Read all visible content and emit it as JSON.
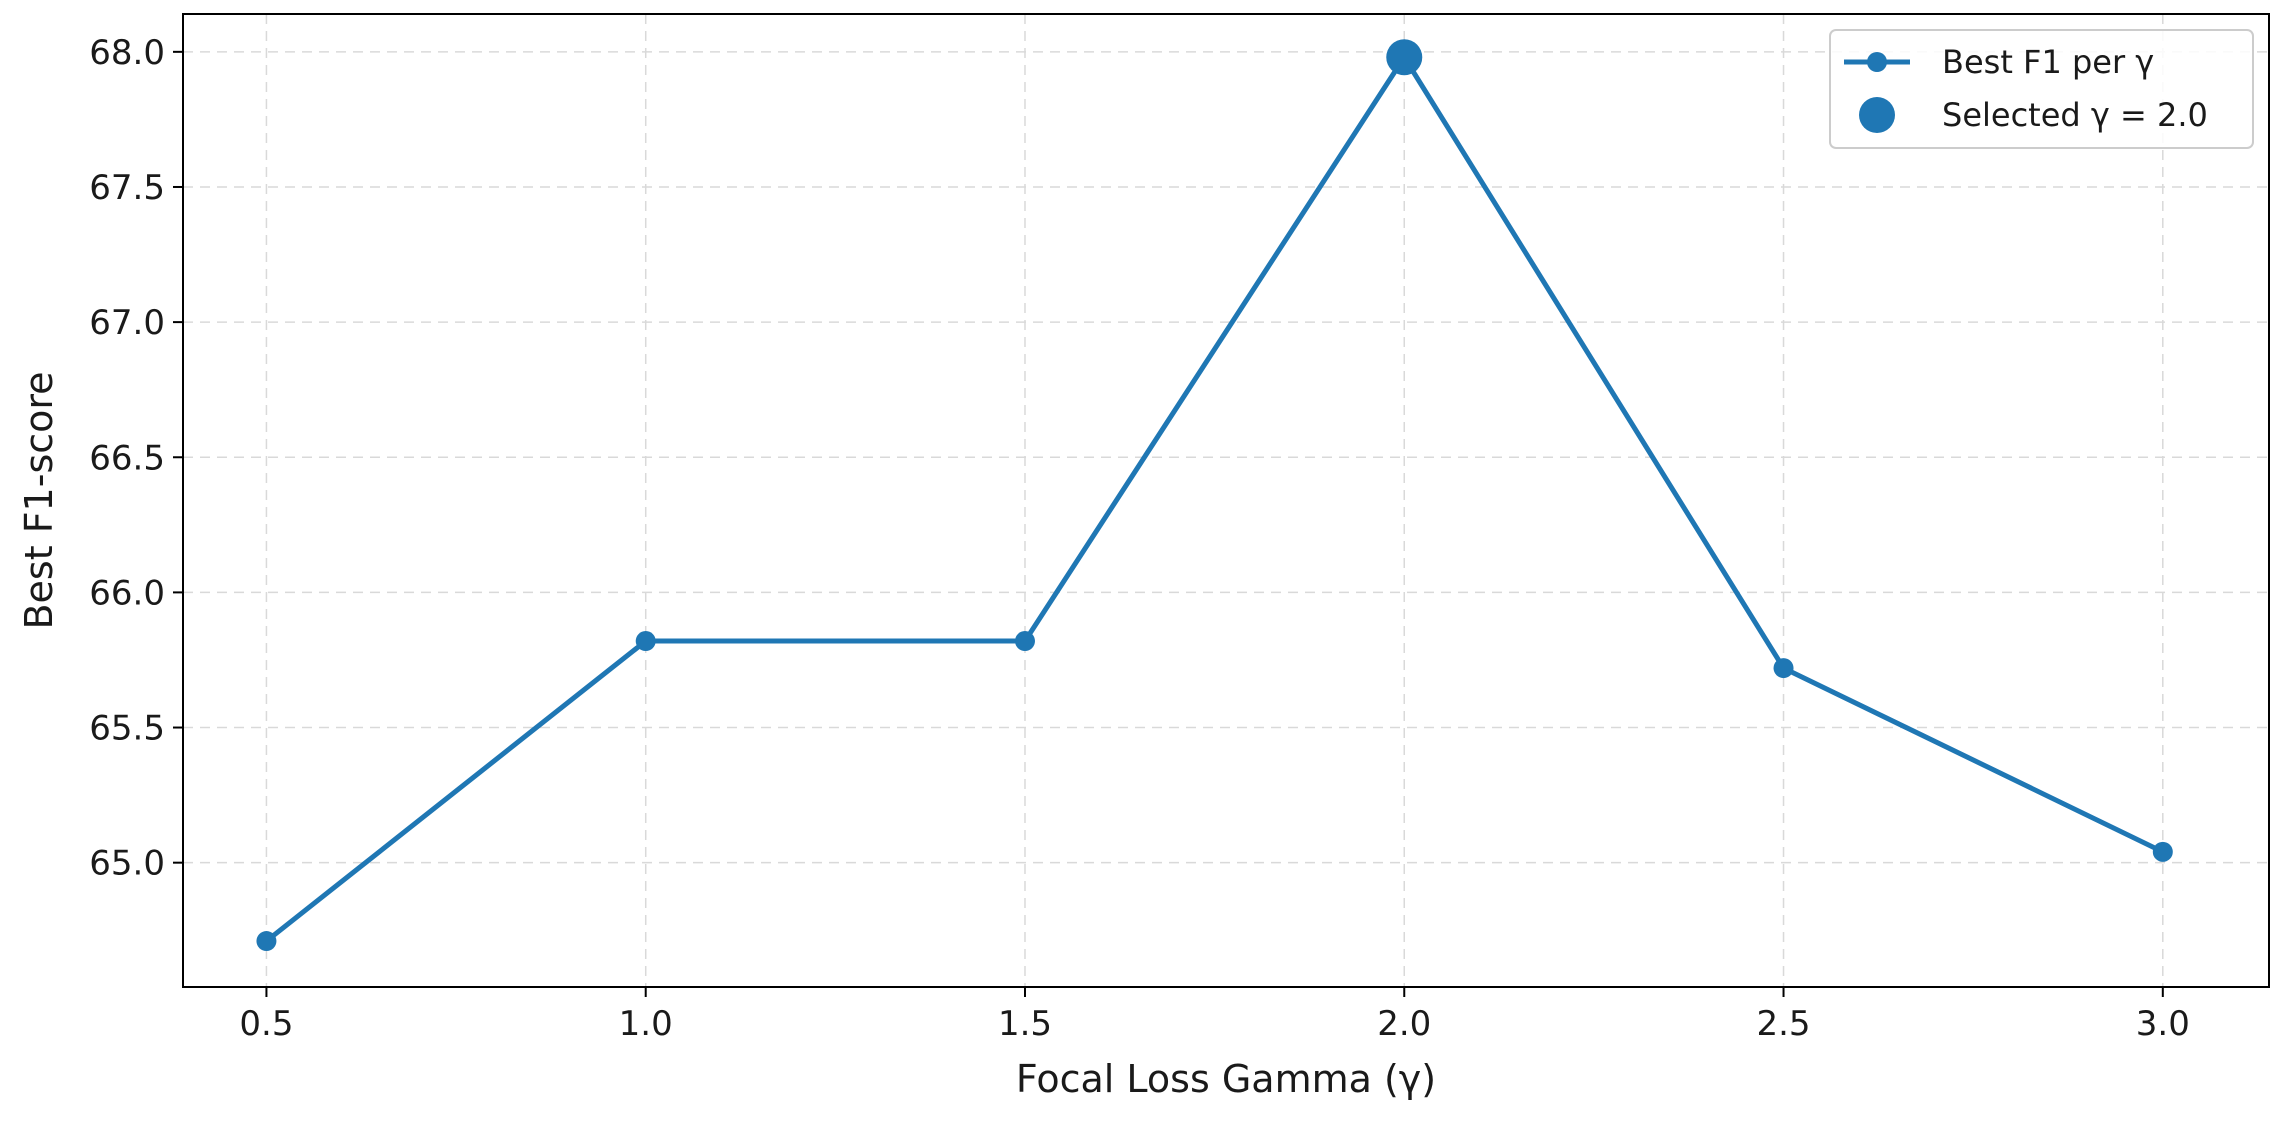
{
  "chart_data": {
    "type": "line",
    "xlabel": "Focal Loss Gamma (γ)",
    "ylabel": "Best F1-score",
    "xlim": [
      0.39,
      3.14
    ],
    "ylim": [
      64.54,
      68.14
    ],
    "x_ticks": [
      0.5,
      1.0,
      1.5,
      2.0,
      2.5,
      3.0
    ],
    "y_ticks": [
      65.0,
      65.5,
      66.0,
      66.5,
      67.0,
      67.5,
      68.0
    ],
    "grid": true,
    "legend_position": "top-right",
    "color": "#1f77b4",
    "series": [
      {
        "name": "Best F1 per γ",
        "x": [
          0.5,
          1.0,
          1.5,
          2.0,
          2.5,
          3.0
        ],
        "y": [
          64.71,
          65.82,
          65.82,
          67.98,
          65.72,
          65.04
        ]
      }
    ],
    "highlight": {
      "name": "Selected γ = 2.0",
      "x": 2.0,
      "y": 67.98
    }
  }
}
